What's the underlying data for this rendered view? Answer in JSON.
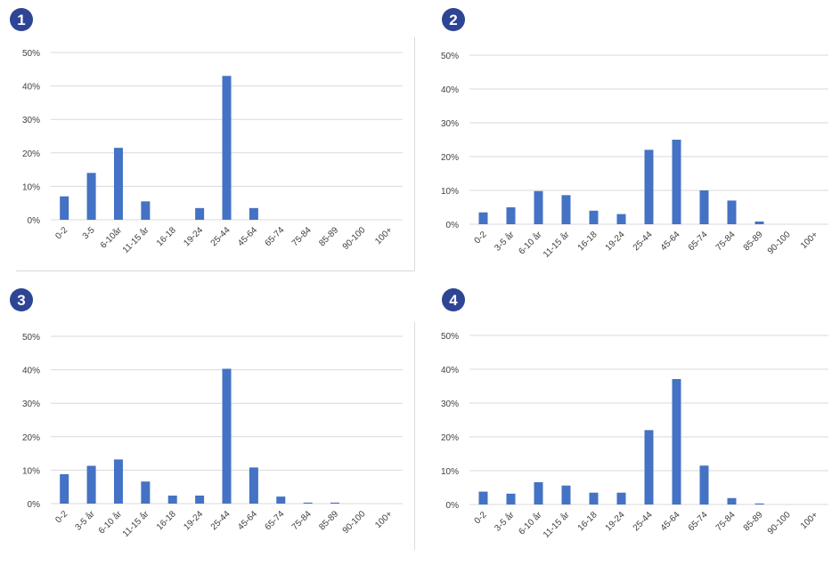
{
  "colors": {
    "bar": "#4472c4",
    "badge": "#2e4494",
    "gridline": "#d9d9d9",
    "axis_text": "#404040"
  },
  "chart_data": [
    {
      "badge": "1",
      "type": "bar",
      "categories": [
        "0-2",
        "3-5",
        "6-10år",
        "11-15 år",
        "16-18",
        "19-24",
        "25-44",
        "45-64",
        "65-74",
        "75-84",
        "85-89",
        "90-100",
        "100+"
      ],
      "values": [
        7,
        14,
        21.5,
        5.5,
        0,
        3.5,
        43,
        3.5,
        0,
        0,
        0,
        0,
        0
      ],
      "yticks": [
        "0%",
        "10%",
        "20%",
        "30%",
        "40%",
        "50%"
      ],
      "ylim": [
        0,
        50
      ],
      "grid": true
    },
    {
      "badge": "2",
      "type": "bar",
      "categories": [
        "0-2",
        "3-5 år",
        "6-10 år",
        "11-15 år",
        "16-18",
        "19-24",
        "25-44",
        "45-64",
        "65-74",
        "75-84",
        "85-89",
        "90-100",
        "100+"
      ],
      "values": [
        3.5,
        5,
        9.8,
        8.6,
        4,
        3,
        22,
        25,
        10,
        7,
        0.8,
        0,
        0
      ],
      "yticks": [
        "0%",
        "10%",
        "20%",
        "30%",
        "40%",
        "50%"
      ],
      "ylim": [
        0,
        50
      ],
      "grid": true
    },
    {
      "badge": "3",
      "type": "bar",
      "categories": [
        "0-2",
        "3-5 år",
        "6-10 år",
        "11-15 år",
        "16-18",
        "19-24",
        "25-44",
        "45-64",
        "65-74",
        "75-84",
        "85-89",
        "90-100",
        "100+"
      ],
      "values": [
        8.8,
        11.3,
        13.2,
        6.6,
        2.4,
        2.4,
        40.3,
        10.8,
        2.1,
        0.3,
        0.3,
        0,
        0
      ],
      "yticks": [
        "0%",
        "10%",
        "20%",
        "30%",
        "40%",
        "50%"
      ],
      "ylim": [
        0,
        50
      ],
      "grid": true
    },
    {
      "badge": "4",
      "type": "bar",
      "categories": [
        "0-2",
        "3-5 år",
        "6-10 år",
        "11-15 år",
        "16-18",
        "19-24",
        "25-44",
        "45-64",
        "65-74",
        "75-84",
        "85-89",
        "90-100",
        "100+"
      ],
      "values": [
        3.8,
        3.2,
        6.6,
        5.6,
        3.5,
        3.5,
        22,
        37.1,
        11.5,
        1.9,
        0.3,
        0,
        0
      ],
      "yticks": [
        "0%",
        "10%",
        "20%",
        "30%",
        "40%",
        "50%"
      ],
      "ylim": [
        0,
        50
      ],
      "grid": true
    }
  ]
}
